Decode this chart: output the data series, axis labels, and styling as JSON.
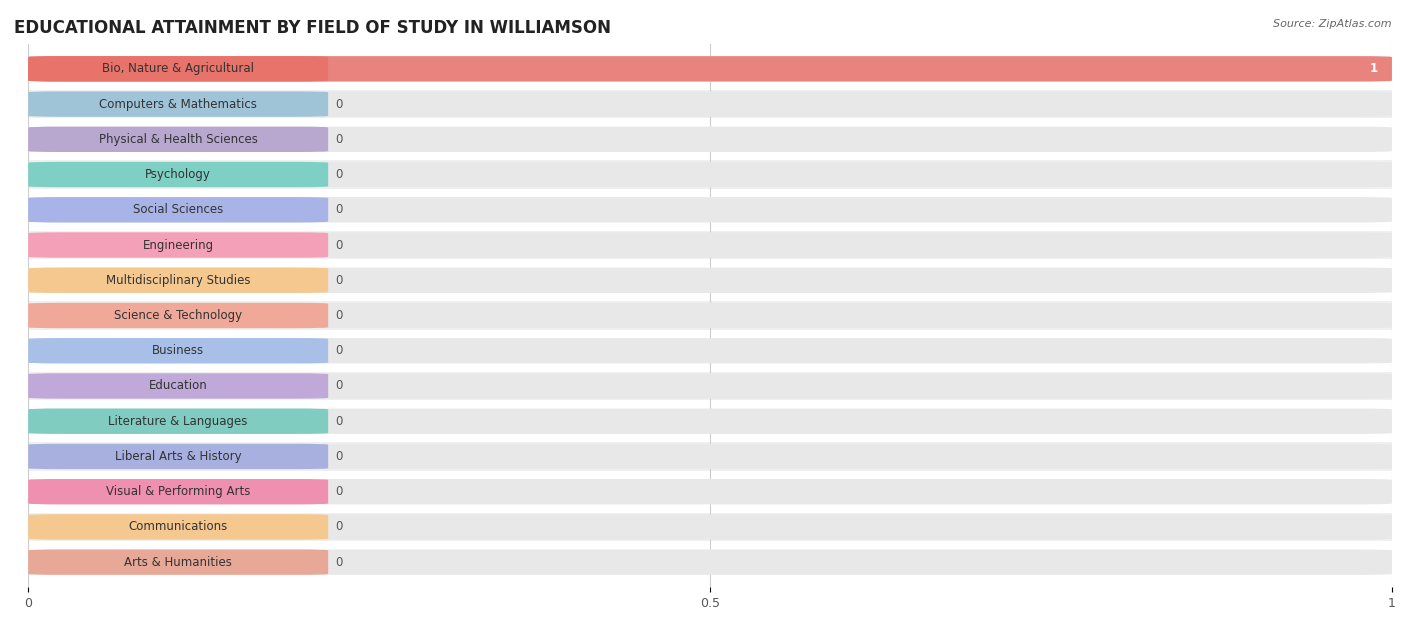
{
  "title": "EDUCATIONAL ATTAINMENT BY FIELD OF STUDY IN WILLIAMSON",
  "source": "Source: ZipAtlas.com",
  "categories": [
    "Bio, Nature & Agricultural",
    "Computers & Mathematics",
    "Physical & Health Sciences",
    "Psychology",
    "Social Sciences",
    "Engineering",
    "Multidisciplinary Studies",
    "Science & Technology",
    "Business",
    "Education",
    "Literature & Languages",
    "Liberal Arts & History",
    "Visual & Performing Arts",
    "Communications",
    "Arts & Humanities"
  ],
  "values": [
    1,
    0,
    0,
    0,
    0,
    0,
    0,
    0,
    0,
    0,
    0,
    0,
    0,
    0,
    0
  ],
  "bar_colors": [
    "#E8736A",
    "#9FC4D8",
    "#B8A8D0",
    "#7ECFC4",
    "#A8B4E8",
    "#F4A0B8",
    "#F5C890",
    "#F0A898",
    "#A8C0E8",
    "#C0A8D8",
    "#80CCC0",
    "#A8B0E0",
    "#F090B0",
    "#F5C890",
    "#E8A898"
  ],
  "row_colors": [
    "#ffffff",
    "#f0f0f0"
  ],
  "label_bar_width": 0.22,
  "xlim": [
    0,
    1
  ],
  "xticks": [
    0,
    0.5,
    1
  ],
  "background_color": "#ffffff",
  "bar_bg_color": "#e8e8e8",
  "title_fontsize": 12,
  "label_fontsize": 8.5,
  "value_fontsize": 8.5,
  "bar_height": 0.72
}
